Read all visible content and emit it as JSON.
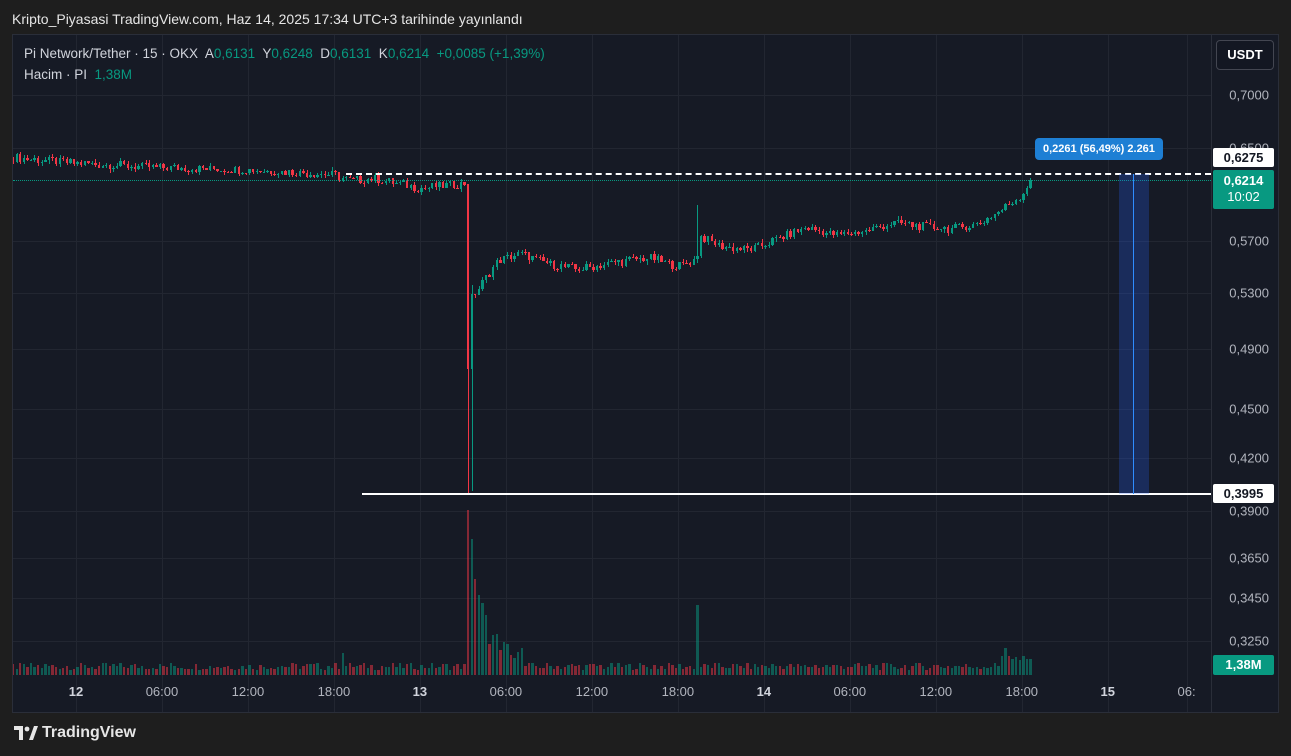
{
  "published": "Kripto_Piyasasi TradingView.com, Haz 14, 2025 17:34 UTC+3 tarihinde yayınlandı",
  "legend": {
    "symbol": "Pi Network/Tether · 15 · OKX",
    "o_label": "A",
    "o": "0,6131",
    "h_label": "Y",
    "h": "0,6248",
    "l_label": "D",
    "l": "0,6131",
    "c_label": "K",
    "c": "0,6214",
    "change": "+0,0085 (+1,39%)",
    "volume_label": "Hacim · PI",
    "volume": "1,38M"
  },
  "currency_button": "USDT",
  "price_axis": [
    "0,7000",
    "0,6500",
    "0,5700",
    "0,5300",
    "0,4900",
    "0,4500",
    "0,4200",
    "0,3900",
    "0,3650",
    "0,3450",
    "0,3250"
  ],
  "price_axis_values": [
    0.7,
    0.65,
    0.57,
    0.53,
    0.49,
    0.45,
    0.42,
    0.39,
    0.365,
    0.345,
    0.325
  ],
  "time_axis": [
    {
      "t": "12",
      "h": 0,
      "bold": true
    },
    {
      "t": "06:00",
      "h": 6
    },
    {
      "t": "12:00",
      "h": 12
    },
    {
      "t": "18:00",
      "h": 18
    },
    {
      "t": "13",
      "h": 24,
      "bold": true
    },
    {
      "t": "06:00",
      "h": 30
    },
    {
      "t": "12:00",
      "h": 36
    },
    {
      "t": "18:00",
      "h": 42
    },
    {
      "t": "14",
      "h": 48,
      "bold": true
    },
    {
      "t": "06:00",
      "h": 54
    },
    {
      "t": "12:00",
      "h": 60
    },
    {
      "t": "18:00",
      "h": 66
    },
    {
      "t": "15",
      "h": 72,
      "bold": true
    },
    {
      "t": "06:",
      "h": 77.5
    }
  ],
  "markers": {
    "high_line": "0,6275",
    "high_value": 0.6275,
    "last_price": "0,6214",
    "last_value": 0.6214,
    "countdown": "10:02",
    "low_line": "0,3995",
    "low_value": 0.3995,
    "volume_tag": "1,38M"
  },
  "measure": {
    "label": "0,2261 (56,49%) 2.261"
  },
  "colors": {
    "up": "#089981",
    "down": "#f23645",
    "measure": "#2962ff"
  },
  "footer": "TradingView",
  "chart_data": {
    "type": "candlestick",
    "interval_minutes": 15,
    "scale": "log",
    "close_anchors": [
      [
        -4.4,
        0.641
      ],
      [
        0,
        0.636
      ],
      [
        6,
        0.632
      ],
      [
        12,
        0.63
      ],
      [
        18,
        0.626
      ],
      [
        19,
        0.621
      ],
      [
        21,
        0.622
      ],
      [
        24,
        0.614
      ],
      [
        27.2,
        0.618
      ],
      [
        27.5,
        0.476
      ],
      [
        27.8,
        0.529
      ],
      [
        28.5,
        0.54
      ],
      [
        29.5,
        0.555
      ],
      [
        31,
        0.56
      ],
      [
        33,
        0.552
      ],
      [
        35,
        0.548
      ],
      [
        37.5,
        0.553
      ],
      [
        40,
        0.557
      ],
      [
        42,
        0.55
      ],
      [
        43.3,
        0.556
      ],
      [
        43.5,
        0.574
      ],
      [
        45,
        0.566
      ],
      [
        47,
        0.563
      ],
      [
        49,
        0.572
      ],
      [
        51,
        0.581
      ],
      [
        53,
        0.575
      ],
      [
        55,
        0.578
      ],
      [
        57,
        0.585
      ],
      [
        59,
        0.582
      ],
      [
        61,
        0.58
      ],
      [
        63,
        0.584
      ],
      [
        64.5,
        0.595
      ],
      [
        66,
        0.608
      ],
      [
        66.6,
        0.6214
      ]
    ],
    "crash": {
      "hour": 27.35,
      "open": 0.618,
      "low": 0.3995,
      "close": 0.476
    },
    "spike": {
      "hour": 43.4,
      "high": 0.6
    }
  }
}
